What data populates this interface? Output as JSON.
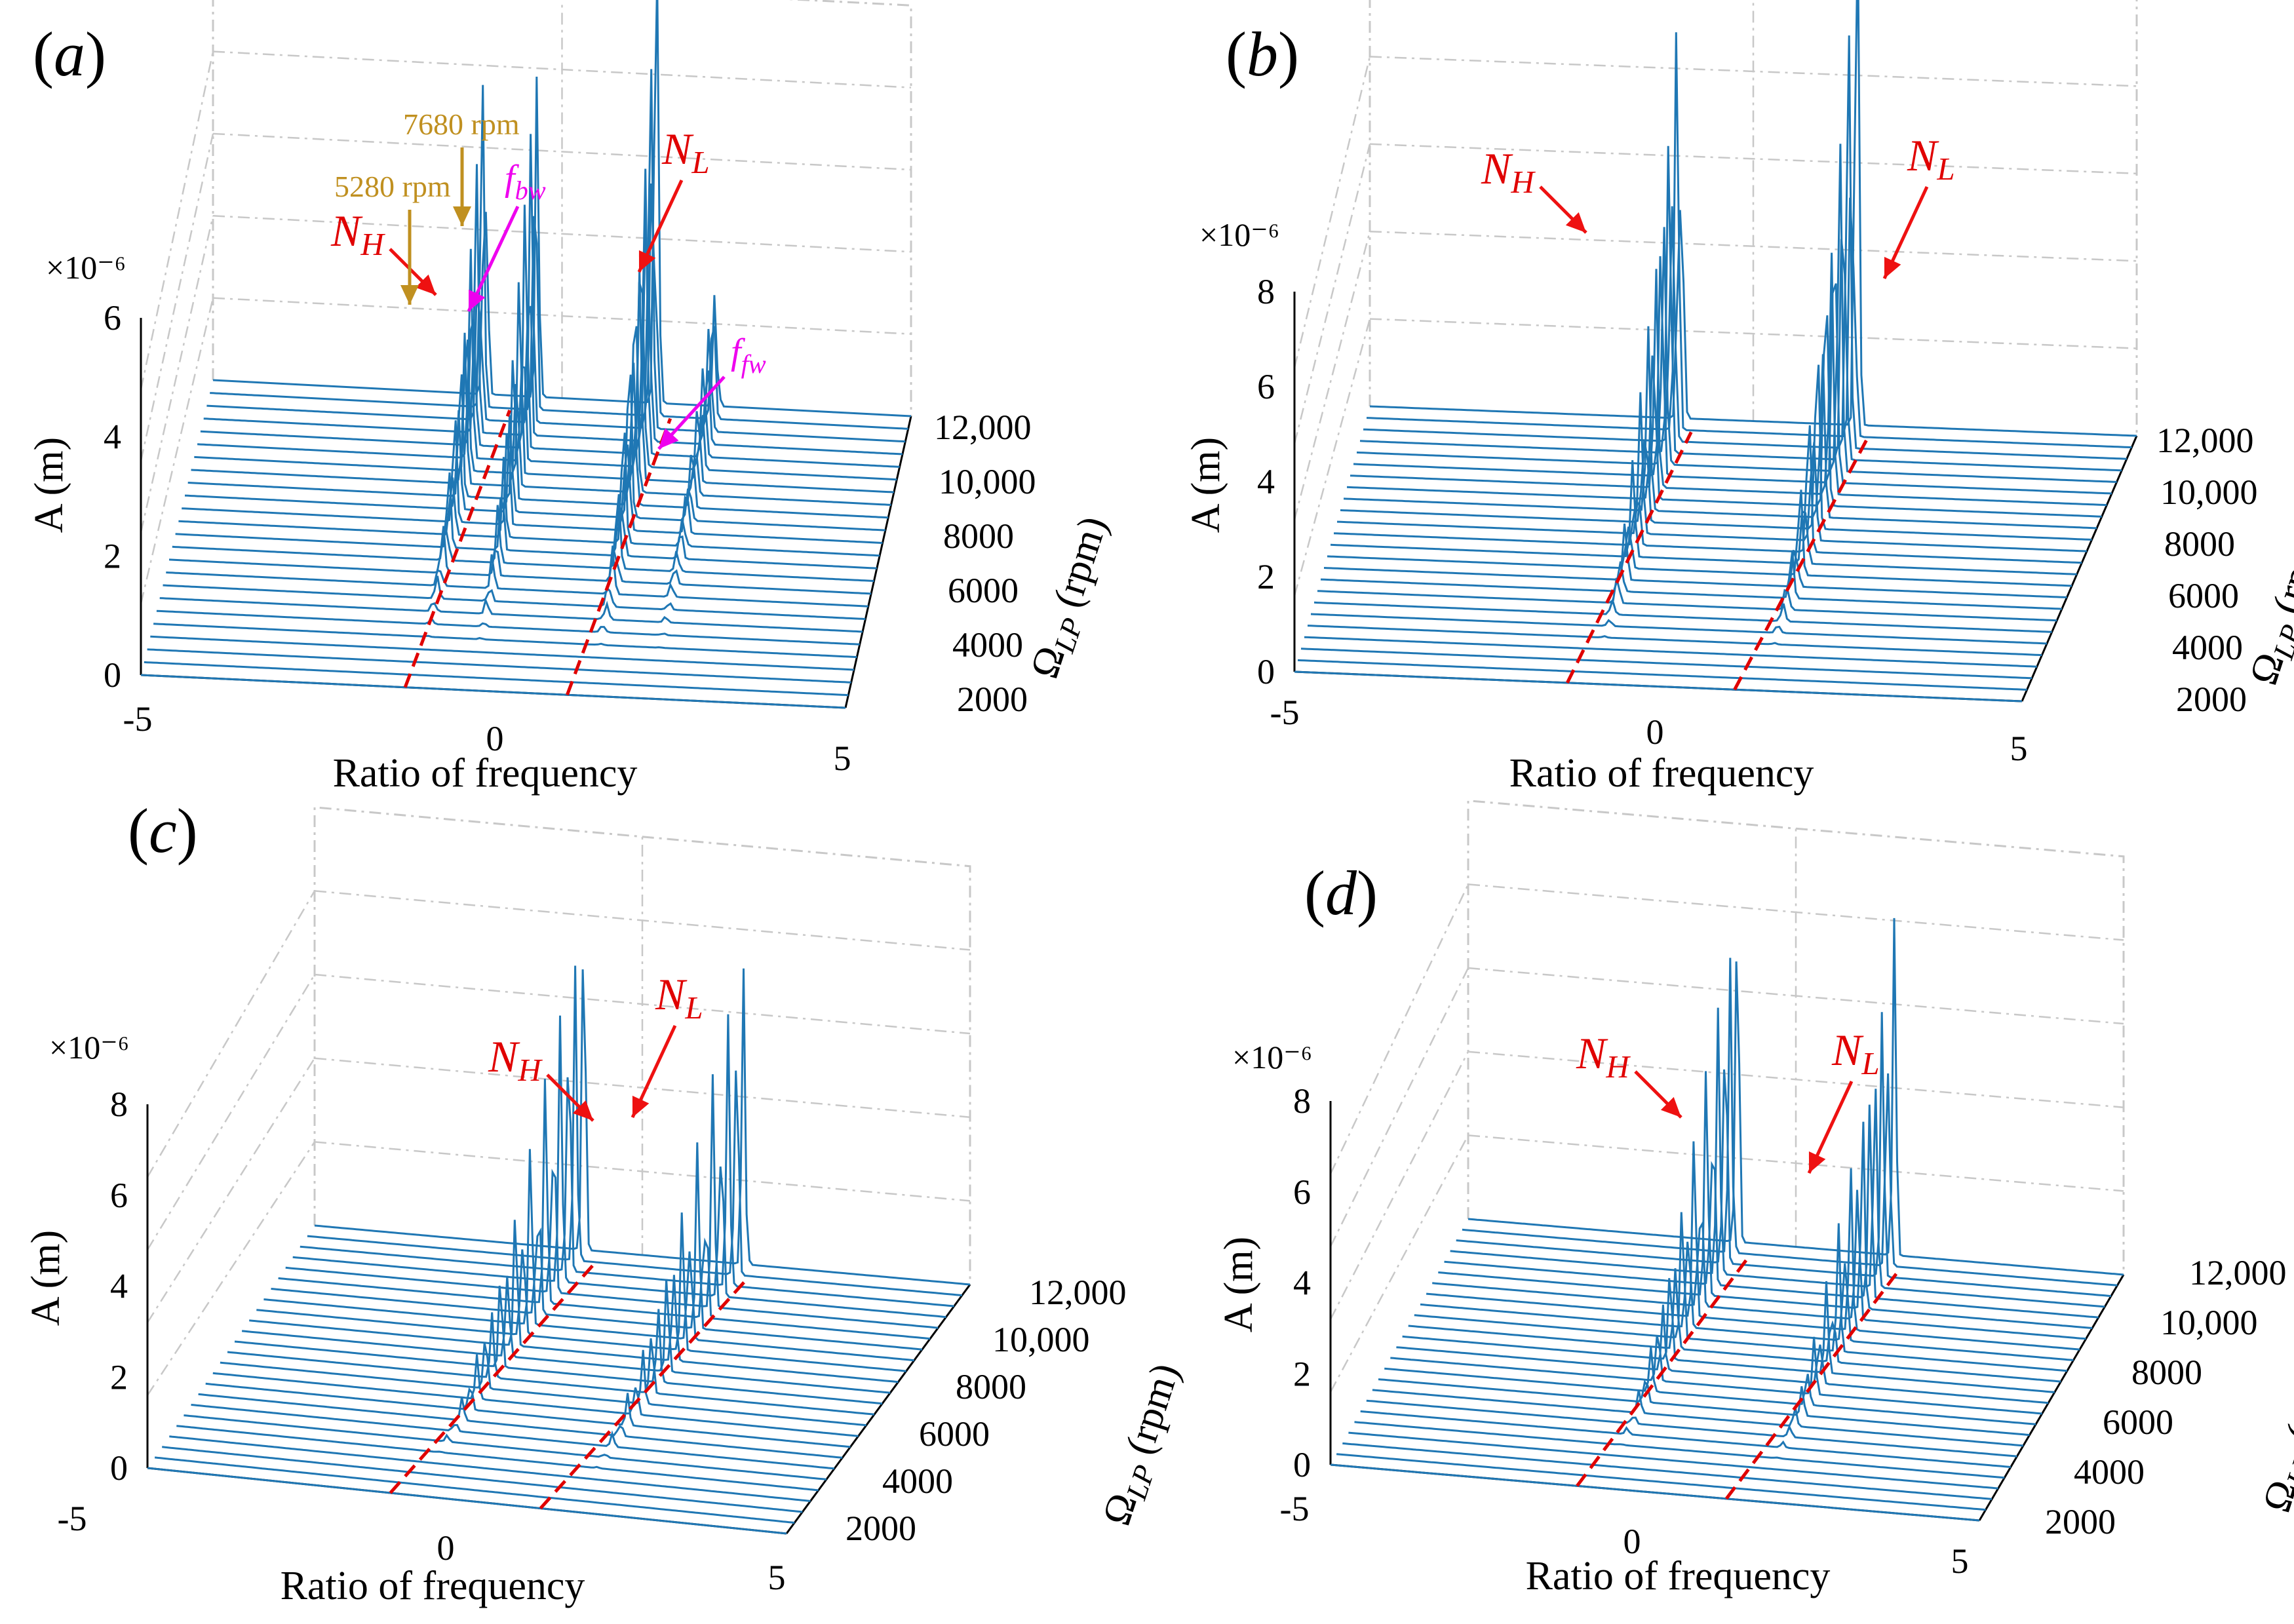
{
  "colors": {
    "series": "#1f77b4",
    "dashed": "#e00000",
    "grid": "#c8c8c8",
    "annotation_red": "#ee1111",
    "annotation_gold": "#c09020",
    "annotation_magenta": "#ee00ee"
  },
  "chart_data": [
    {
      "id": "a",
      "panel_label": "a",
      "type": "waterfall-3d",
      "xlabel": "Ratio of frequency",
      "ylabel": "A (m)",
      "zlabel_main": "Ω",
      "zlabel_sub": "LP",
      "zlabel_unit": " (rpm)",
      "scale_note": "×10⁻⁶",
      "x_ticks": [
        "-5",
        "0",
        "5"
      ],
      "y_ticks": [
        "0",
        "2",
        "4",
        "6"
      ],
      "z_ticks": [
        "2000",
        "4000",
        "6000",
        "8000",
        "10,000",
        "12,000"
      ],
      "xlim": [
        -5,
        5
      ],
      "ylim": [
        0,
        6
      ],
      "zlim": [
        1000,
        12000
      ],
      "speed_count": 24,
      "NH_ratio": [
        -1.25,
        -0.7
      ],
      "NL_ratio": [
        1.05,
        1.6
      ],
      "peaks": [
        {
          "x": -1.1,
          "a": 6.2,
          "width": 0.35
        },
        {
          "x": -0.35,
          "a": 6.8,
          "width": 0.3
        },
        {
          "x": 1.35,
          "a": 7.8,
          "width": 0.4
        },
        {
          "x": 2.2,
          "a": 2.6,
          "width": 0.35
        }
      ],
      "annotations": {
        "NH_base": "N",
        "NH_sub": "H",
        "NL_base": "N",
        "NL_sub": "L",
        "rpm1": "7680 rpm",
        "rpm2": "5280 rpm",
        "fbw_base": "f",
        "fbw_sub": "bw",
        "ffw_base": "f",
        "ffw_sub": "fw"
      }
    },
    {
      "id": "b",
      "panel_label": "b",
      "type": "waterfall-3d",
      "xlabel": "Ratio of frequency",
      "ylabel": "A (m)",
      "zlabel_main": "Ω",
      "zlabel_sub": "LP",
      "zlabel_unit": " (rpm)",
      "scale_note": "×10⁻⁶",
      "x_ticks": [
        "-5",
        "0",
        "5"
      ],
      "y_ticks": [
        "0",
        "2",
        "4",
        "6",
        "8"
      ],
      "z_ticks": [
        "2000",
        "4000",
        "6000",
        "8000",
        "10,000",
        "12,000"
      ],
      "xlim": [
        -5,
        5
      ],
      "ylim": [
        0,
        8
      ],
      "zlim": [
        1000,
        12000
      ],
      "speed_count": 24,
      "NH_ratio": [
        -1.25,
        -0.75
      ],
      "NL_ratio": [
        1.05,
        1.55
      ],
      "peaks": [
        {
          "x": -0.95,
          "a": 9.5,
          "width": 0.35
        },
        {
          "x": 1.35,
          "a": 11.5,
          "width": 0.35
        }
      ],
      "annotations": {
        "NH_base": "N",
        "NH_sub": "H",
        "NL_base": "N",
        "NL_sub": "L"
      }
    },
    {
      "id": "c",
      "panel_label": "c",
      "type": "waterfall-3d",
      "xlabel": "Ratio of frequency",
      "ylabel": "A (m)",
      "zlabel_main": "Ω",
      "zlabel_sub": "LP",
      "zlabel_unit": " (rpm)",
      "scale_note": "×10⁻⁶",
      "x_ticks": [
        "-5",
        "0",
        "5"
      ],
      "y_ticks": [
        "0",
        "2",
        "4",
        "6",
        "8"
      ],
      "z_ticks": [
        "2000",
        "4000",
        "6000",
        "8000",
        "10,000",
        "12,000"
      ],
      "xlim": [
        -5,
        5
      ],
      "ylim": [
        0,
        8
      ],
      "zlim": [
        1000,
        12000
      ],
      "speed_count": 24,
      "NH_ratio": [
        -1.2,
        -0.6
      ],
      "NL_ratio": [
        1.15,
        1.75
      ],
      "peaks": [
        {
          "x": -0.9,
          "a": 8.3,
          "width": 0.35
        },
        {
          "x": 1.55,
          "a": 7.5,
          "width": 0.35
        }
      ],
      "annotations": {
        "NH_base": "N",
        "NH_sub": "H",
        "NL_base": "N",
        "NL_sub": "L"
      }
    },
    {
      "id": "d",
      "panel_label": "d",
      "type": "waterfall-3d",
      "xlabel": "Ratio of frequency",
      "ylabel": "A (m)",
      "zlabel_main": "Ω",
      "zlabel_sub": "LP",
      "zlabel_unit": " (rpm)",
      "scale_note": "×10⁻⁶",
      "x_ticks": [
        "-5",
        "0",
        "5"
      ],
      "y_ticks": [
        "0",
        "2",
        "4",
        "6",
        "8"
      ],
      "z_ticks": [
        "2000",
        "4000",
        "6000",
        "8000",
        "10,000",
        "12,000"
      ],
      "xlim": [
        -5,
        5
      ],
      "ylim": [
        0,
        8
      ],
      "zlim": [
        1000,
        12000
      ],
      "speed_count": 24,
      "NH_ratio": [
        -1.2,
        -0.6
      ],
      "NL_ratio": [
        1.1,
        1.7
      ],
      "peaks": [
        {
          "x": -0.9,
          "a": 8.3,
          "width": 0.35
        },
        {
          "x": 1.5,
          "a": 7.6,
          "width": 0.35
        }
      ],
      "annotations": {
        "NH_base": "N",
        "NH_sub": "H",
        "NL_base": "N",
        "NL_sub": "L"
      }
    }
  ]
}
